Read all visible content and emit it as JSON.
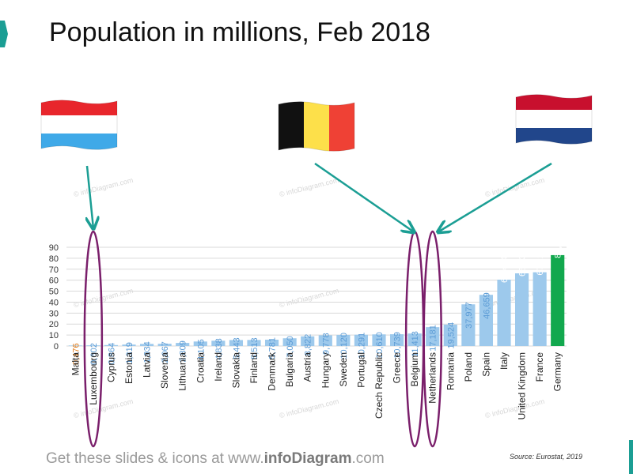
{
  "title": "Population in millions, Feb 2018",
  "footer": {
    "prefix": "Get these slides & icons at www.",
    "brand": "infoDiagram",
    "suffix": ".com"
  },
  "source": "Source: Eurostat, 2019",
  "watermark": "© infoDiagram.com",
  "colors": {
    "bar_default": "#9dc9ec",
    "bar_highlight": "#12a84e",
    "label_default": "#5b9bd5",
    "label_min": "#e07b1a",
    "label_on_bar": "#ffffff",
    "ellipse": "#7a1f6b",
    "arrow": "#1b9e94",
    "accent": "#1b9e94"
  },
  "flags": [
    {
      "name": "luxembourg-flag-icon",
      "stripes": [
        "#e8262c",
        "#ffffff",
        "#3fa9e8"
      ],
      "orientation": "horizontal"
    },
    {
      "name": "belgium-flag-icon",
      "stripes": [
        "#111111",
        "#fde04a",
        "#ef4135"
      ],
      "orientation": "vertical"
    },
    {
      "name": "netherlands-flag-icon",
      "stripes": [
        "#c8102e",
        "#ffffff",
        "#21468b"
      ],
      "orientation": "horizontal"
    }
  ],
  "chart_data": {
    "type": "bar",
    "title": "Population in millions, Feb 2018",
    "ylim": [
      0,
      90
    ],
    "yticks": [
      0,
      10,
      20,
      30,
      40,
      50,
      60,
      70,
      80,
      90
    ],
    "grid": true,
    "categories": [
      "Malta",
      "Luxembourg",
      "Cyprus",
      "Estonia",
      "Latvia",
      "Slovenia",
      "Lithuania",
      "Croatia",
      "Ireland",
      "Slovakia",
      "Finland",
      "Denmark",
      "Bulgaria",
      "Austria",
      "Hungary",
      "Sweden",
      "Portugal",
      "Czech Republic",
      "Greece",
      "Belgium",
      "Netherlands",
      "Romania",
      "Poland",
      "Spain",
      "Italy",
      "United Kingdom",
      "France",
      "Germany"
    ],
    "values": [
      0.476,
      0.602,
      0.864,
      1.319,
      1.934,
      2.067,
      2.809,
      4.105,
      4.838,
      5.443,
      5.513,
      5.781,
      7.05,
      8.822,
      9.778,
      10.12,
      10.291,
      10.61,
      10.739,
      11.413,
      17.181,
      19.524,
      37.977,
      46.659,
      60.484,
      66.238,
      67.222,
      82.85
    ],
    "labels": [
      "0,476",
      "0,602",
      "0,864",
      "1,319",
      "1,934",
      "2,067",
      "2,809",
      "4,105",
      "4,838",
      "5,443",
      "5,513",
      "5,781",
      "7,050",
      "8,822",
      "9,778",
      "10,120",
      "10,291",
      "10,610",
      "10,739",
      "11,413",
      "17,181",
      "19,524",
      "37,977",
      "46,659",
      "60,484",
      "66,238",
      "67,222",
      "82,850"
    ],
    "highlighted": [
      "Luxembourg",
      "Belgium",
      "Netherlands"
    ]
  }
}
